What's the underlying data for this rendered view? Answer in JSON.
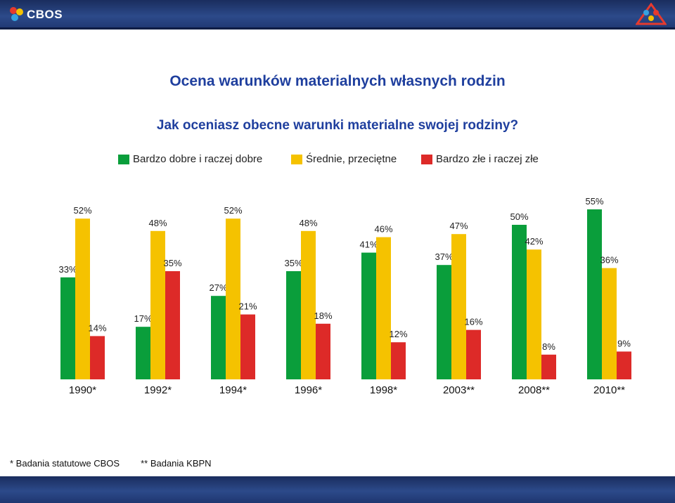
{
  "header": {
    "logo_text": "CBOS"
  },
  "colors": {
    "green": "#0a9e3b",
    "yellow": "#f5c200",
    "red": "#dd2a28",
    "title_blue": "#1f3f9e"
  },
  "chart_data": {
    "type": "bar",
    "title": "Ocena warunków materialnych własnych rodzin",
    "subtitle": "Jak oceniasz obecne warunki materialne swojej rodziny?",
    "categories": [
      "1990*",
      "1992*",
      "1994*",
      "1996*",
      "1998*",
      "2003**",
      "2008**",
      "2010**"
    ],
    "series": [
      {
        "name": "Bardzo dobre i raczej dobre",
        "values": [
          33,
          17,
          27,
          35,
          41,
          37,
          50,
          55
        ]
      },
      {
        "name": "Średnie, przeciętne",
        "values": [
          52,
          48,
          52,
          48,
          46,
          47,
          42,
          36
        ]
      },
      {
        "name": "Bardzo złe i raczej złe",
        "values": [
          14,
          35,
          21,
          18,
          12,
          16,
          8,
          9
        ]
      }
    ],
    "value_suffix": "%",
    "ylim": [
      0,
      55
    ],
    "grid": false,
    "legend_position": "top"
  },
  "footnotes": {
    "note1": "* Badania statutowe CBOS",
    "note2": "** Badania KBPN"
  }
}
